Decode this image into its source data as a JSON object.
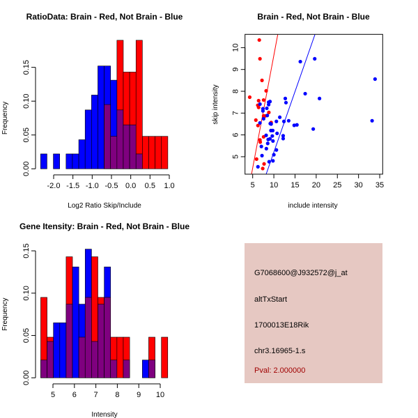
{
  "chart_data": [
    {
      "type": "bar",
      "subtype": "overlaid-histogram",
      "title": "RatioData: Brain - Red, Not Brain - Blue",
      "xlabel": "Log2 Ratio Skip/Include",
      "ylabel": "Frequency",
      "xticks": [
        "-2.0",
        "-1.5",
        "-1.0",
        "-0.5",
        "0.0",
        "0.5",
        "1.0"
      ],
      "xtick_values": [
        -2.0,
        -1.5,
        -1.0,
        -0.5,
        0.0,
        0.5,
        1.0
      ],
      "yticks": [
        "0.00",
        "0.05",
        "0.10",
        "0.15"
      ],
      "ytick_values": [
        0,
        0.05,
        0.1,
        0.15
      ],
      "bin_start": -2.338,
      "bin_width": 0.165,
      "series": [
        {
          "name": "Brain",
          "color": "#ff0000",
          "values": [
            0,
            0,
            0,
            0,
            0,
            0,
            0,
            0,
            0,
            0,
            0.095,
            0.048,
            0.19,
            0.143,
            0.143,
            0.19,
            0.048,
            0.048,
            0.048,
            0.048
          ]
        },
        {
          "name": "Not Brain",
          "color": "#0000ff",
          "values": [
            0.022,
            0,
            0.022,
            0,
            0.022,
            0.022,
            0.043,
            0.087,
            0.109,
            0.152,
            0.152,
            0.131,
            0.087,
            0.065,
            0.065,
            0.022,
            0,
            0,
            0,
            0
          ]
        }
      ],
      "overlap_color": "#7f007f"
    },
    {
      "type": "scatter",
      "title": "Brain - Red, Not Brain - Blue",
      "xlabel": "include intensity",
      "ylabel": "skip intensity",
      "xlim": [
        3.19,
        35.7
      ],
      "ylim": [
        4.2,
        10.61
      ],
      "xticks": [
        "5",
        "10",
        "15",
        "20",
        "25",
        "30",
        "35"
      ],
      "xtick_values": [
        5,
        10,
        15,
        20,
        25,
        30,
        35
      ],
      "yticks": [
        "5",
        "6",
        "7",
        "8",
        "9",
        "10"
      ],
      "ytick_values": [
        5,
        6,
        7,
        8,
        9,
        10
      ],
      "series": [
        {
          "name": "Brain",
          "color": "#ff0000",
          "points": [
            [
              6.56,
              10.35
            ],
            [
              6.72,
              9.49
            ],
            [
              7.2,
              8.5
            ],
            [
              8.18,
              8.02
            ],
            [
              4.3,
              7.73
            ],
            [
              6.4,
              7.57
            ],
            [
              7.58,
              7.6
            ],
            [
              6.2,
              7.36
            ],
            [
              6.4,
              7.26
            ],
            [
              8.82,
              7.03
            ],
            [
              7.58,
              6.87
            ],
            [
              7.96,
              6.87
            ],
            [
              5.75,
              6.68
            ],
            [
              9.36,
              6.57
            ],
            [
              6.24,
              6.43
            ],
            [
              7.58,
              5.91
            ],
            [
              6.72,
              5.77
            ],
            [
              6.78,
              5.67
            ],
            [
              5.92,
              4.89
            ],
            [
              7.69,
              4.67
            ],
            [
              7.37,
              4.46
            ]
          ],
          "fit_line": [
            [
              4.73,
              4.2
            ],
            [
              10.92,
              10.6
            ]
          ]
        },
        {
          "name": "Not Brain",
          "color": "#0000ff",
          "points": [
            [
              6.24,
              4.54
            ],
            [
              7.2,
              5.05
            ],
            [
              7.05,
              5.47
            ],
            [
              8.23,
              5.37
            ],
            [
              8.88,
              4.77
            ],
            [
              9.79,
              4.81
            ],
            [
              10.0,
              5.09
            ],
            [
              10.6,
              5.31
            ],
            [
              8.18,
              5.98
            ],
            [
              8.55,
              5.61
            ],
            [
              8.66,
              5.79
            ],
            [
              9.09,
              5.82
            ],
            [
              9.79,
              5.72
            ],
            [
              9.63,
              5.95
            ],
            [
              9.31,
              6.2
            ],
            [
              9.74,
              6.2
            ],
            [
              10.76,
              6.07
            ],
            [
              9.36,
              6.5
            ],
            [
              9.15,
              6.52
            ],
            [
              6.72,
              6.55
            ],
            [
              7.58,
              6.74
            ],
            [
              8.45,
              6.89
            ],
            [
              7.42,
              7.1
            ],
            [
              7.42,
              7.2
            ],
            [
              8.34,
              7.22
            ],
            [
              6.72,
              7.41
            ],
            [
              8.77,
              7.39
            ],
            [
              8.77,
              7.5
            ],
            [
              9.09,
              7.53
            ],
            [
              10.6,
              6.62
            ],
            [
              11.4,
              6.81
            ],
            [
              12.2,
              5.83
            ],
            [
              12.2,
              5.96
            ],
            [
              12.38,
              6.62
            ],
            [
              12.7,
              7.67
            ],
            [
              12.86,
              7.48
            ],
            [
              13.5,
              6.65
            ],
            [
              14.8,
              6.44
            ],
            [
              15.45,
              6.46
            ],
            [
              16.25,
              9.36
            ],
            [
              17.4,
              7.89
            ],
            [
              19.3,
              6.27
            ],
            [
              19.65,
              9.49
            ],
            [
              20.78,
              7.67
            ],
            [
              33.2,
              6.65
            ],
            [
              33.9,
              8.56
            ]
          ],
          "fit_line": [
            [
              8.18,
              4.2
            ],
            [
              19.7,
              10.6
            ]
          ]
        }
      ]
    },
    {
      "type": "bar",
      "subtype": "overlaid-histogram",
      "title": "Gene Itensity: Brain - Red, Not Brain - Blue",
      "xlabel": "Intensity",
      "ylabel": "Frequency",
      "xticks": [
        "5",
        "6",
        "7",
        "8",
        "9",
        "10"
      ],
      "xtick_values": [
        5,
        6,
        7,
        8,
        9,
        10
      ],
      "yticks": [
        "0.00",
        "0.05",
        "0.10",
        "0.15"
      ],
      "ytick_values": [
        0,
        0.05,
        0.1,
        0.15
      ],
      "bin_start": 4.43,
      "bin_width": 0.296,
      "series": [
        {
          "name": "Brain",
          "color": "#ff0000",
          "values": [
            0.095,
            0.048,
            0,
            0,
            0.143,
            0,
            0.048,
            0.095,
            0.143,
            0.095,
            0.095,
            0.048,
            0.048,
            0.048,
            0,
            0,
            0,
            0.048,
            0,
            0.048
          ]
        },
        {
          "name": "Not Brain",
          "color": "#0000ff",
          "values": [
            0.021,
            0.043,
            0.065,
            0.065,
            0.087,
            0.131,
            0.087,
            0.152,
            0.043,
            0.087,
            0.131,
            0.021,
            0,
            0.021,
            0,
            0,
            0.021,
            0.021,
            0,
            0
          ]
        }
      ],
      "overlap_color": "#7f007f"
    }
  ],
  "info_panel": {
    "probe_id": "G7068600@J932572@j_at",
    "event_type": "altTxStart",
    "gene": "1700013E18Rik",
    "location": "chr3.16965-1.s",
    "pval": "Pval: 2.000000",
    "background": "#e6c8c2",
    "pval_color": "#a00000"
  }
}
